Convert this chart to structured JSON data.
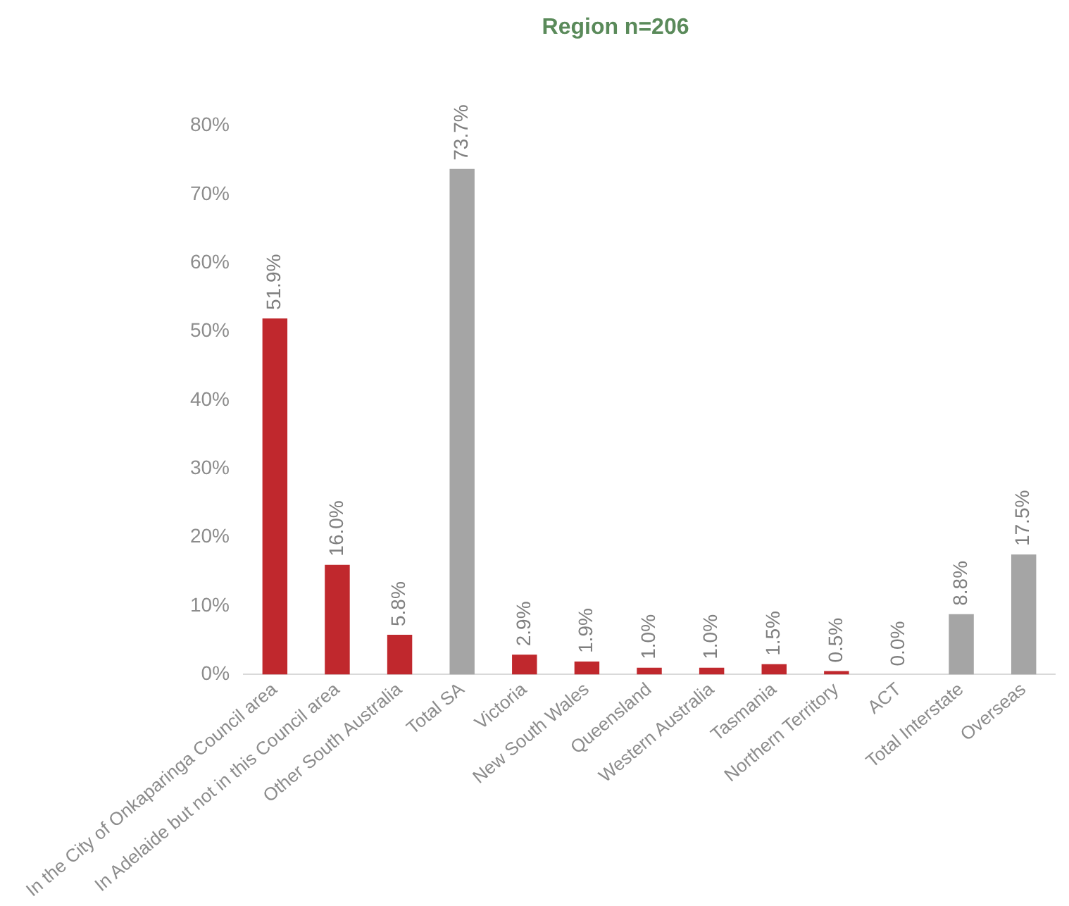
{
  "chart_data": {
    "type": "bar",
    "title": "Region n=206",
    "categories": [
      "In the City of Onkaparinga Council area",
      "In Adelaide but not in this Council area",
      "Other South Australia",
      "Total SA",
      "Victoria",
      "New South Wales",
      "Queensland",
      "Western Australia",
      "Tasmania",
      "Northern Territory",
      "ACT",
      "Total Interstate",
      "Overseas"
    ],
    "values": [
      51.9,
      16.0,
      5.8,
      73.7,
      2.9,
      1.9,
      1.0,
      1.0,
      1.5,
      0.5,
      0.0,
      8.8,
      17.5
    ],
    "colors": [
      "#c0282d",
      "#c0282d",
      "#c0282d",
      "#a5a5a5",
      "#c0282d",
      "#c0282d",
      "#c0282d",
      "#c0282d",
      "#c0282d",
      "#c0282d",
      "#c0282d",
      "#a5a5a5",
      "#a5a5a5"
    ],
    "value_labels": [
      "51.9%",
      "16.0%",
      "5.8%",
      "73.7%",
      "2.9%",
      "1.9%",
      "1.0%",
      "1.0%",
      "1.5%",
      "0.5%",
      "0.0%",
      "8.8%",
      "17.5%"
    ],
    "ylim": [
      0,
      80
    ],
    "yticks": [
      {
        "value": 0,
        "label": "0%"
      },
      {
        "value": 10,
        "label": "10%"
      },
      {
        "value": 20,
        "label": "20%"
      },
      {
        "value": 30,
        "label": "30%"
      },
      {
        "value": 40,
        "label": "40%"
      },
      {
        "value": 50,
        "label": "50%"
      },
      {
        "value": 60,
        "label": "60%"
      },
      {
        "value": 70,
        "label": "70%"
      },
      {
        "value": 80,
        "label": "80%"
      }
    ],
    "grid": false,
    "legend": false
  }
}
